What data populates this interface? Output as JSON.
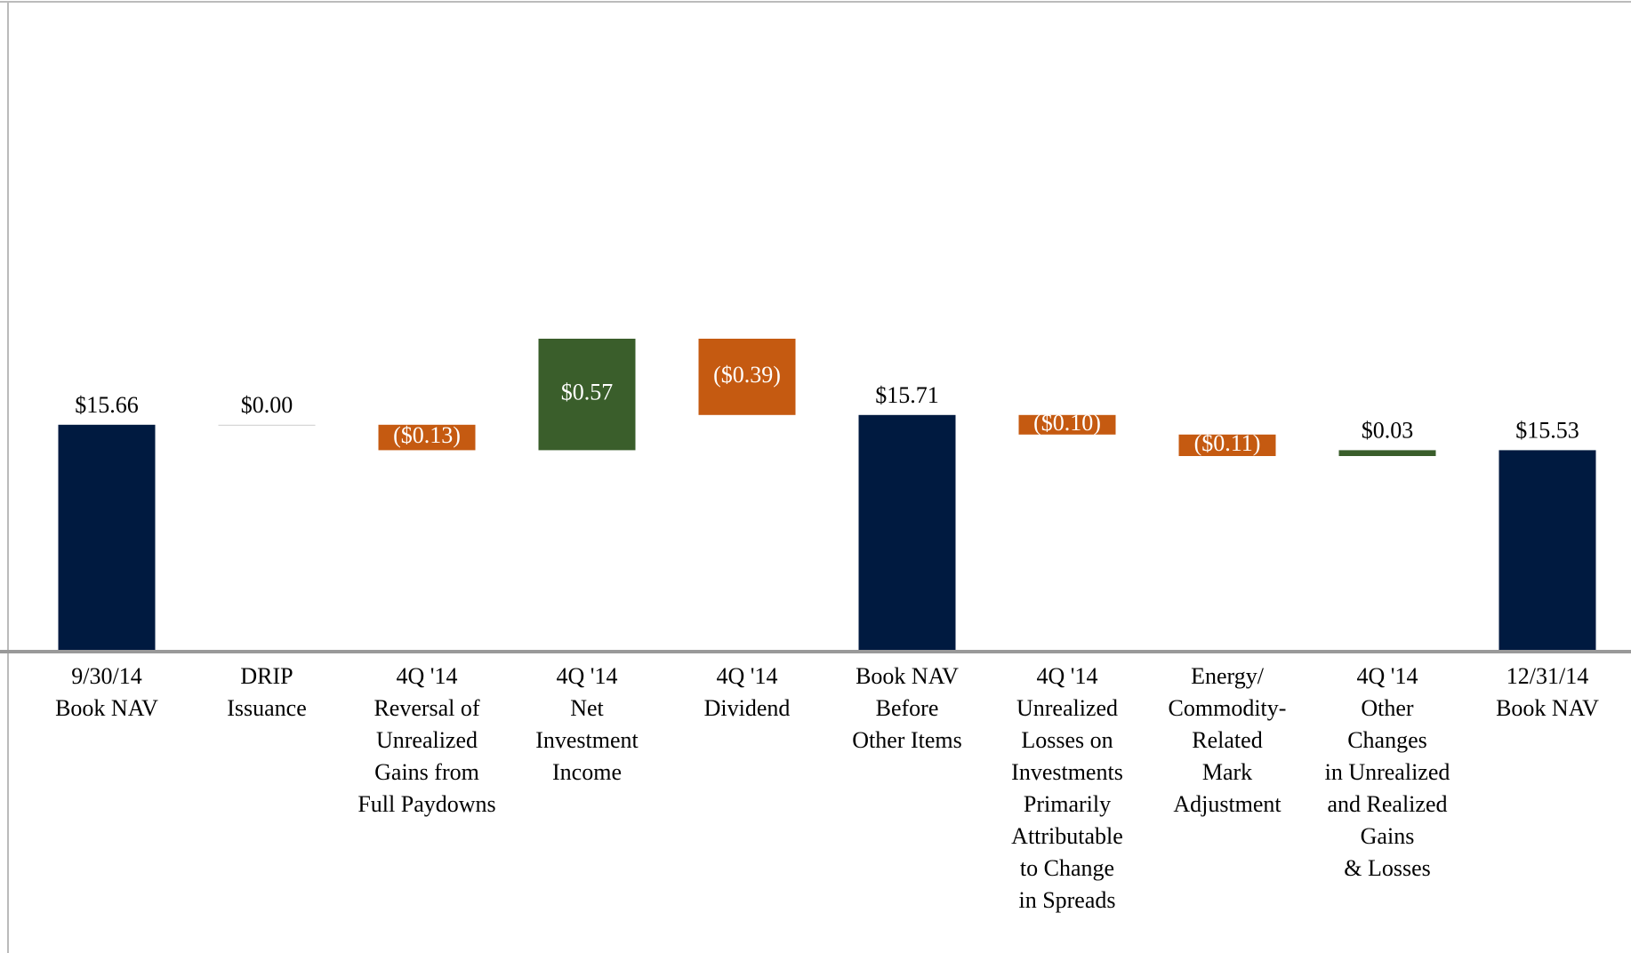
{
  "chart_data": {
    "type": "waterfall",
    "categories": [
      [
        "9/30/14",
        "Book NAV"
      ],
      [
        "DRIP",
        "Issuance"
      ],
      [
        "4Q '14",
        "Reversal of",
        "Unrealized",
        "Gains from",
        "Full Paydowns"
      ],
      [
        "4Q '14",
        "Net",
        "Investment",
        "Income"
      ],
      [
        "4Q '14",
        "Dividend"
      ],
      [
        "Book NAV",
        "Before",
        "Other Items"
      ],
      [
        "4Q '14",
        "Unrealized",
        "Losses on",
        "Investments",
        "Primarily",
        "Attributable",
        "to Change",
        "in Spreads"
      ],
      [
        "Energy/",
        "Commodity-",
        "Related",
        "Mark",
        "Adjustment"
      ],
      [
        "4Q '14",
        "Other",
        "Changes",
        "in Unrealized",
        "and Realized",
        "Gains",
        "& Losses"
      ],
      [
        "12/31/14",
        "Book NAV"
      ]
    ],
    "values": [
      15.66,
      0.0,
      -0.13,
      0.57,
      -0.39,
      15.71,
      -0.1,
      -0.11,
      0.03,
      15.53
    ],
    "value_labels": [
      "$15.66",
      "$0.00",
      "($0.13)",
      "$0.57",
      "($0.39)",
      "$15.71",
      "($0.10)",
      "($0.11)",
      "$0.03",
      "$15.53"
    ],
    "is_total": [
      true,
      false,
      false,
      false,
      false,
      true,
      false,
      false,
      false,
      true
    ],
    "total_color": "#001a40",
    "increase_color": "#3a5e2b",
    "decrease_color": "#c55a11",
    "zero_color": "#cccccc",
    "ylim": [
      14.5,
      17.75
    ]
  }
}
